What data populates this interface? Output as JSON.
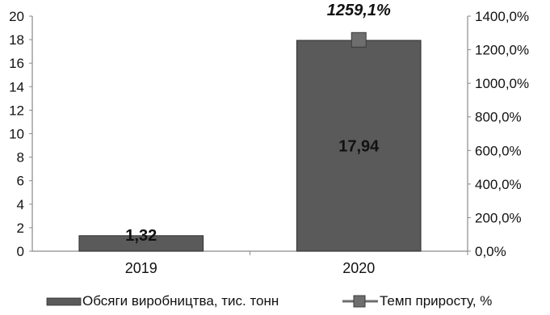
{
  "chart_data": {
    "type": "bar",
    "categories": [
      "2019",
      "2020"
    ],
    "series": [
      {
        "name": "Обсяги виробництва, тис. тонн",
        "kind": "bar",
        "axis": "left",
        "values": [
          1.32,
          17.94
        ],
        "labels": [
          "1,32",
          "17,94"
        ],
        "color": "#5a5a5a"
      },
      {
        "name": "Темп приросту, %",
        "kind": "line-marker",
        "axis": "right",
        "values": [
          null,
          1259.1
        ],
        "labels": [
          "",
          "1259,1%"
        ],
        "color": "#6e6e6e"
      }
    ],
    "y_left": {
      "min": 0,
      "max": 20,
      "step": 2,
      "ticks": [
        "0",
        "2",
        "4",
        "6",
        "8",
        "10",
        "12",
        "14",
        "16",
        "18",
        "20"
      ]
    },
    "y_right": {
      "min": 0,
      "max": 1400,
      "step": 200,
      "ticks": [
        "0,0%",
        "200,0%",
        "400,0%",
        "600,0%",
        "800,0%",
        "1000,0%",
        "1200,0%",
        "1400,0%"
      ]
    },
    "grid": false,
    "legend_position": "bottom"
  }
}
